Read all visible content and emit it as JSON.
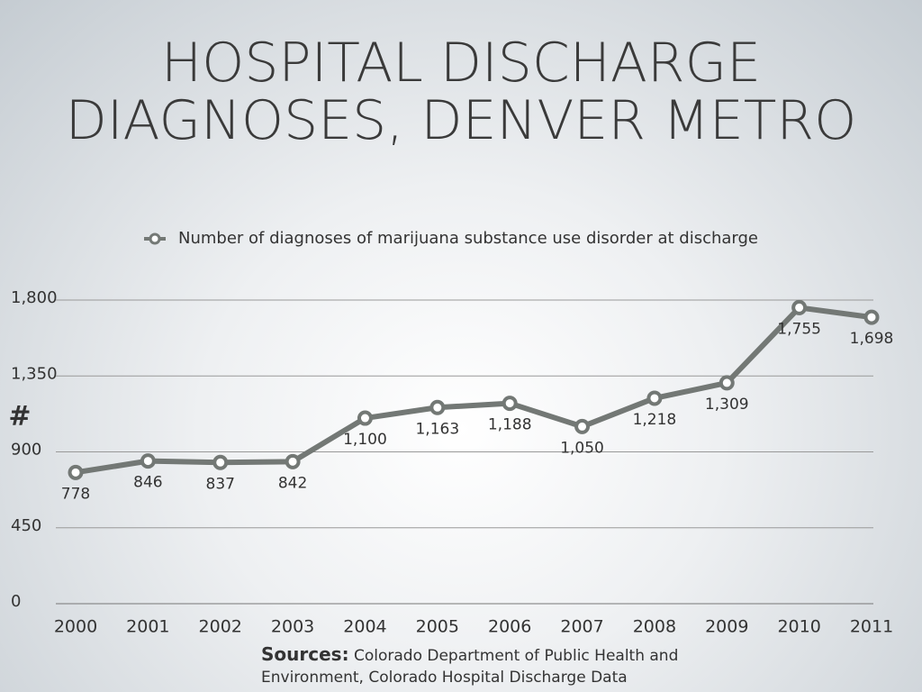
{
  "chart_data": {
    "type": "line",
    "title": "HOSPITAL DISCHARGE DIAGNOSES, DENVER METRO",
    "y_label": "#",
    "categories": [
      "2000",
      "2001",
      "2002",
      "2003",
      "2004",
      "2005",
      "2006",
      "2007",
      "2008",
      "2009",
      "2010",
      "2011"
    ],
    "series": [
      {
        "name": "Number of diagnoses of marijuana substance use disorder at discharge",
        "color": "#737875",
        "values": [
          778,
          846,
          837,
          842,
          1100,
          1163,
          1188,
          1050,
          1218,
          1309,
          1755,
          1698
        ],
        "value_labels": [
          "778",
          "846",
          "837",
          "842",
          "1,100",
          "1,163",
          "1,188",
          "1,050",
          "1,218",
          "1,309",
          "1,755",
          "1,698"
        ]
      }
    ],
    "ylim": [
      0,
      1800
    ],
    "yticks": [
      0,
      450,
      900,
      {
        "value": 1350,
        "label": "1,350"
      },
      {
        "value": 1800,
        "label": "1,800"
      }
    ],
    "grid": true,
    "legend": "top",
    "source_label": "Sources:",
    "source": "Colorado Department of Public Health and Environment, Colorado Hospital Discharge Data Program"
  }
}
